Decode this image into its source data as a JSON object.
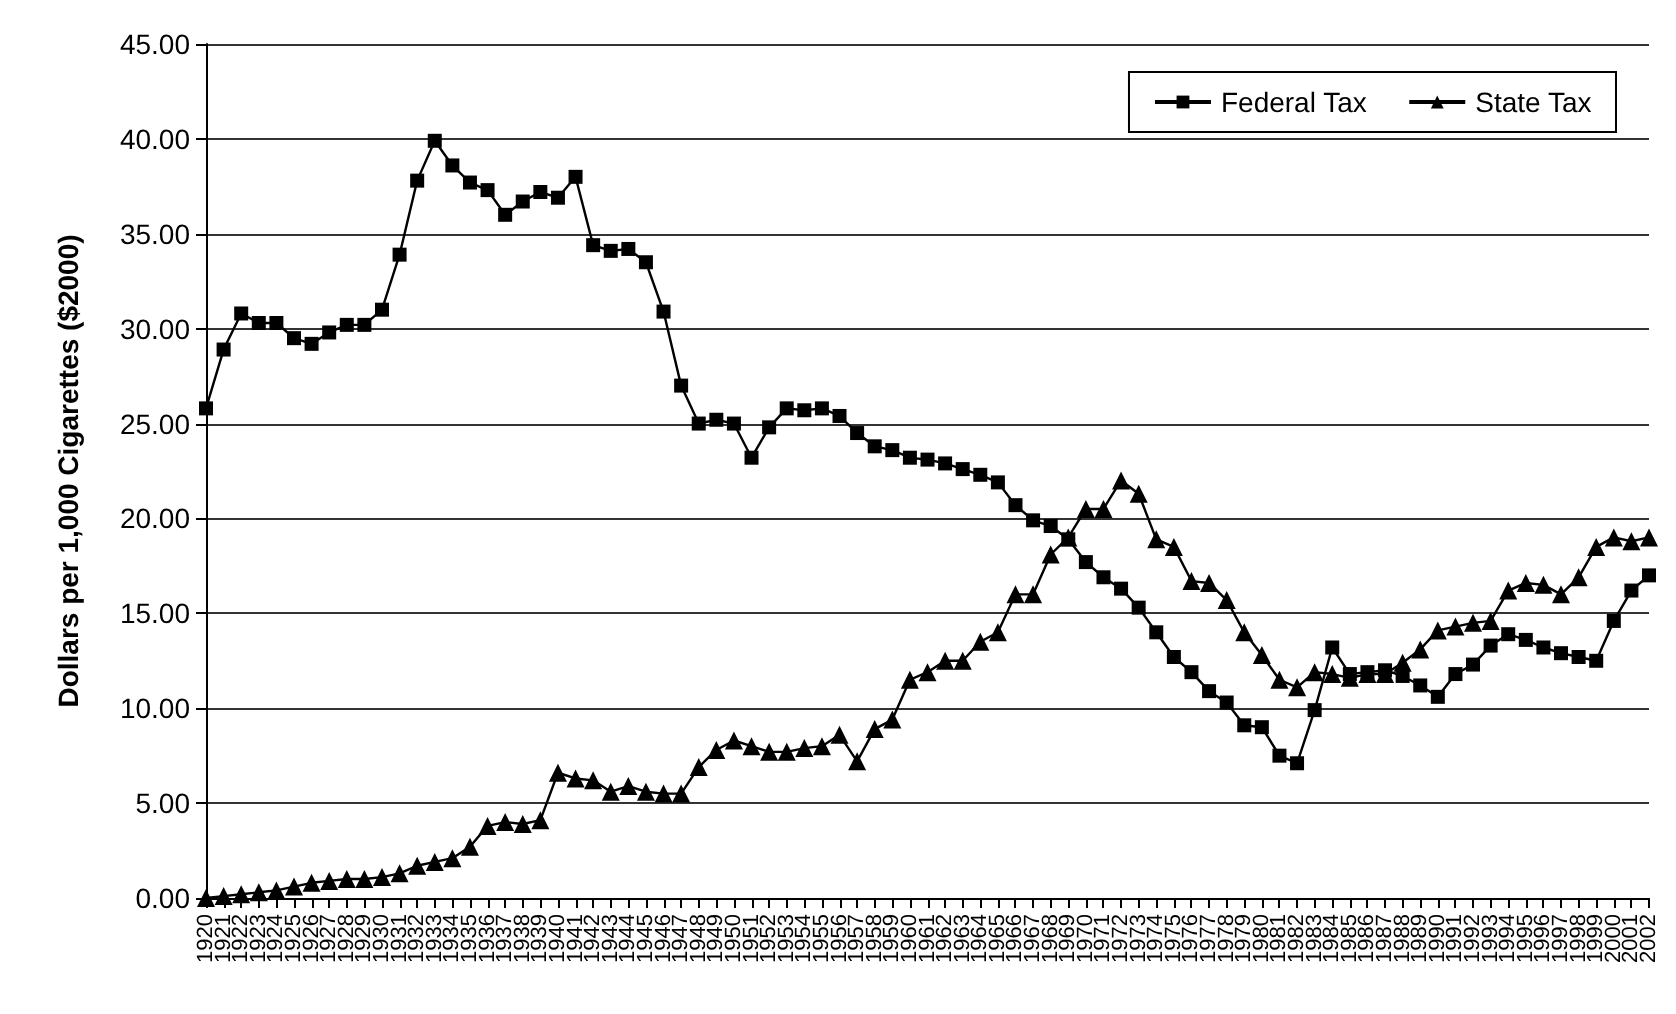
{
  "chart_data": {
    "type": "line",
    "ylabel": "Dollars per 1,000 Cigarettes ($2000)",
    "categories": [
      "1920",
      "1921",
      "1922",
      "1923",
      "1924",
      "1925",
      "1926",
      "1927",
      "1928",
      "1929",
      "1930",
      "1931",
      "1932",
      "1933",
      "1934",
      "1935",
      "1936",
      "1937",
      "1938",
      "1939",
      "1940",
      "1941",
      "1942",
      "1943",
      "1944",
      "1945",
      "1946",
      "1947",
      "1948",
      "1949",
      "1950",
      "1951",
      "1952",
      "1953",
      "1954",
      "1955",
      "1956",
      "1957",
      "1958",
      "1959",
      "1960",
      "1961",
      "1962",
      "1963",
      "1964",
      "1965",
      "1966",
      "1967",
      "1968",
      "1969",
      "1970",
      "1971",
      "1972",
      "1973",
      "1974",
      "1975",
      "1976",
      "1977",
      "1978",
      "1979",
      "1980",
      "1981",
      "1982",
      "1983",
      "1984",
      "1985",
      "1986",
      "1987",
      "1988",
      "1989",
      "1990",
      "1991",
      "1992",
      "1993",
      "1994",
      "1995",
      "1996",
      "1997",
      "1998",
      "1999",
      "2000",
      "2001",
      "2002"
    ],
    "series": [
      {
        "name": "Federal Tax",
        "color": "#000000",
        "marker": "square",
        "values": [
          25.8,
          28.9,
          30.8,
          30.3,
          30.3,
          29.5,
          29.2,
          29.8,
          30.2,
          30.2,
          31.0,
          33.9,
          37.8,
          39.9,
          38.6,
          37.7,
          37.3,
          36.0,
          36.7,
          37.2,
          36.9,
          38.0,
          34.4,
          34.1,
          34.2,
          33.5,
          30.9,
          27.0,
          25.0,
          25.2,
          25.0,
          23.2,
          24.8,
          25.8,
          25.7,
          25.8,
          25.4,
          24.5,
          23.8,
          23.6,
          23.2,
          23.1,
          22.9,
          22.6,
          22.3,
          21.9,
          20.7,
          19.9,
          19.6,
          18.9,
          17.7,
          16.9,
          16.3,
          15.3,
          14.0,
          12.7,
          11.9,
          10.9,
          10.3,
          9.1,
          9.0,
          7.5,
          7.1,
          9.9,
          13.2,
          11.8,
          11.9,
          12.0,
          11.7,
          11.2,
          10.6,
          11.8,
          12.3,
          13.3,
          13.9,
          13.6,
          13.2,
          12.9,
          12.7,
          12.5,
          14.6,
          16.2,
          17.0
        ]
      },
      {
        "name": "State Tax",
        "color": "#000000",
        "marker": "triangle",
        "values": [
          0.0,
          0.1,
          0.2,
          0.3,
          0.4,
          0.6,
          0.8,
          0.9,
          1.0,
          1.0,
          1.1,
          1.3,
          1.7,
          1.9,
          2.1,
          2.7,
          3.8,
          4.0,
          3.9,
          4.1,
          6.6,
          6.3,
          6.2,
          5.6,
          5.9,
          5.6,
          5.5,
          5.5,
          6.9,
          7.8,
          8.3,
          8.0,
          7.7,
          7.7,
          7.9,
          8.0,
          8.6,
          7.2,
          8.9,
          9.4,
          11.5,
          11.9,
          12.5,
          12.5,
          13.5,
          14.0,
          16.0,
          16.0,
          18.1,
          19.0,
          20.5,
          20.5,
          22.0,
          21.3,
          18.9,
          18.5,
          16.7,
          16.6,
          15.7,
          14.0,
          12.8,
          11.5,
          11.1,
          11.9,
          11.8,
          11.6,
          11.8,
          11.8,
          12.4,
          13.1,
          14.1,
          14.3,
          14.5,
          14.6,
          16.2,
          16.6,
          16.5,
          16.0,
          16.9,
          18.5,
          19.0,
          18.8,
          19.0
        ]
      }
    ],
    "ylim": [
      0,
      45
    ],
    "yticks": [
      {
        "value": 0,
        "label": "0.00"
      },
      {
        "value": 5,
        "label": "5.00"
      },
      {
        "value": 10,
        "label": "10.00"
      },
      {
        "value": 15,
        "label": "15.00"
      },
      {
        "value": 20,
        "label": "20.00"
      },
      {
        "value": 25,
        "label": "25.00"
      },
      {
        "value": 30,
        "label": "30.00"
      },
      {
        "value": 35,
        "label": "35.00"
      },
      {
        "value": 40,
        "label": "40.00"
      },
      {
        "value": 45,
        "label": "45.00"
      }
    ],
    "grid": "y",
    "legend": "top right",
    "line_style": "solid"
  }
}
